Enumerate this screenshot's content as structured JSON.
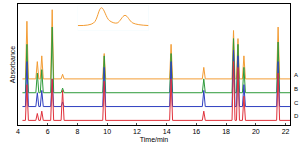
{
  "chart_data": [
    {
      "type": "line",
      "x_label": "Time/min",
      "y_label": "Absorbance",
      "x": [
        4.3,
        4.5,
        4.6,
        4.7,
        5.2,
        5.3,
        5.4,
        5.5,
        5.6,
        5.7,
        6.2,
        6.3,
        6.4,
        6.9,
        7.0,
        7.1,
        9.7,
        9.8,
        9.9,
        14.2,
        14.3,
        14.4,
        16.4,
        16.5,
        16.6,
        18.4,
        18.5,
        18.6,
        18.7,
        18.8,
        18.9,
        19.1,
        19.2,
        19.3,
        21.4,
        21.5,
        21.6,
        22.3
      ],
      "series": [
        {
          "name": "A",
          "color": "#f39c33",
          "values": [
            40,
            40,
            90,
            40,
            40,
            55,
            40,
            40,
            60,
            40,
            40,
            100,
            40,
            40,
            44,
            40,
            40,
            62,
            40,
            40,
            70,
            40,
            40,
            50,
            40,
            40,
            82,
            40,
            40,
            75,
            40,
            40,
            60,
            40,
            40,
            85,
            40,
            40
          ]
        },
        {
          "name": "B",
          "color": "#2e9a3a",
          "values": [
            28,
            28,
            70,
            28,
            28,
            45,
            28,
            28,
            48,
            28,
            28,
            85,
            28,
            28,
            32,
            28,
            28,
            60,
            28,
            28,
            62,
            28,
            28,
            40,
            28,
            28,
            75,
            28,
            28,
            70,
            28,
            28,
            50,
            28,
            28,
            72,
            28,
            28
          ]
        },
        {
          "name": "C",
          "color": "#2f3fc0",
          "values": [
            16,
            16,
            55,
            16,
            16,
            28,
            16,
            16,
            30,
            16,
            16,
            40,
            16,
            16,
            20,
            16,
            16,
            50,
            16,
            16,
            55,
            16,
            16,
            30,
            16,
            16,
            65,
            16,
            16,
            60,
            16,
            16,
            35,
            16,
            16,
            55,
            16,
            16
          ]
        },
        {
          "name": "D",
          "color": "#e0303a",
          "values": [
            4,
            4,
            35,
            4,
            4,
            10,
            4,
            4,
            12,
            4,
            4,
            40,
            4,
            4,
            30,
            4,
            4,
            38,
            4,
            4,
            40,
            4,
            4,
            12,
            4,
            4,
            55,
            4,
            4,
            50,
            4,
            4,
            25,
            4,
            4,
            45,
            4,
            4
          ]
        }
      ],
      "xlim": [
        4,
        22.3
      ],
      "xticks": [
        4,
        6,
        8,
        10,
        12,
        14,
        16,
        18,
        20,
        22
      ],
      "ylim": [
        0,
        105
      ],
      "yticks": [],
      "tick_labels": "x",
      "grid": false
    },
    {
      "type": "line",
      "color": "#f39c33",
      "x": [
        5.0,
        5.2,
        5.3,
        5.4,
        5.5,
        5.6,
        5.7,
        5.9
      ],
      "values": [
        2,
        3,
        9,
        4,
        3,
        6,
        3,
        2
      ],
      "xlim": [
        5.0,
        5.9
      ],
      "ylim": [
        0,
        10
      ],
      "xticks": [],
      "yticks": [],
      "tick_labels": false,
      "grid": false
    }
  ]
}
